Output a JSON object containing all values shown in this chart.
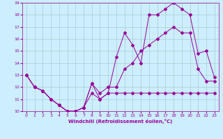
{
  "xlabel": "Windchill (Refroidissement éolien,°C)",
  "bg_color": "#cceeff",
  "grid_color": "#aacccc",
  "line_color": "#990099",
  "xlim": [
    -0.5,
    23.5
  ],
  "ylim": [
    10,
    19
  ],
  "xticks": [
    0,
    1,
    2,
    3,
    4,
    5,
    6,
    7,
    8,
    9,
    10,
    11,
    12,
    13,
    14,
    15,
    16,
    17,
    18,
    19,
    20,
    21,
    22,
    23
  ],
  "yticks": [
    10,
    11,
    12,
    13,
    14,
    15,
    16,
    17,
    18,
    19
  ],
  "series1_x": [
    0,
    1,
    2,
    3,
    4,
    5,
    6,
    7,
    8,
    9,
    10,
    11,
    12,
    13,
    14,
    15,
    16,
    17,
    18,
    19,
    20,
    21,
    22,
    23
  ],
  "series1_y": [
    13.0,
    12.0,
    11.7,
    11.0,
    10.5,
    10.0,
    10.0,
    10.3,
    12.3,
    11.0,
    11.5,
    14.5,
    16.5,
    15.5,
    14.0,
    18.0,
    18.0,
    18.5,
    19.0,
    18.5,
    18.0,
    14.8,
    15.0,
    12.8
  ],
  "series2_x": [
    0,
    1,
    2,
    3,
    4,
    5,
    6,
    7,
    8,
    9,
    10,
    11,
    12,
    13,
    14,
    15,
    16,
    17,
    18,
    19,
    20,
    21,
    22,
    23
  ],
  "series2_y": [
    13.0,
    12.0,
    11.7,
    11.0,
    10.5,
    10.0,
    10.0,
    10.3,
    12.3,
    11.5,
    12.0,
    12.0,
    13.5,
    14.0,
    15.0,
    15.5,
    16.0,
    16.5,
    17.0,
    16.5,
    16.5,
    13.5,
    12.5,
    12.5
  ],
  "series3_x": [
    0,
    1,
    2,
    3,
    4,
    5,
    6,
    7,
    8,
    9,
    10,
    11,
    12,
    13,
    14,
    15,
    16,
    17,
    18,
    19,
    20,
    21,
    22,
    23
  ],
  "series3_y": [
    13.0,
    12.0,
    11.7,
    11.0,
    10.5,
    10.0,
    10.0,
    10.3,
    11.5,
    11.0,
    11.5,
    11.5,
    11.5,
    11.5,
    11.5,
    11.5,
    11.5,
    11.5,
    11.5,
    11.5,
    11.5,
    11.5,
    11.5,
    11.5
  ]
}
